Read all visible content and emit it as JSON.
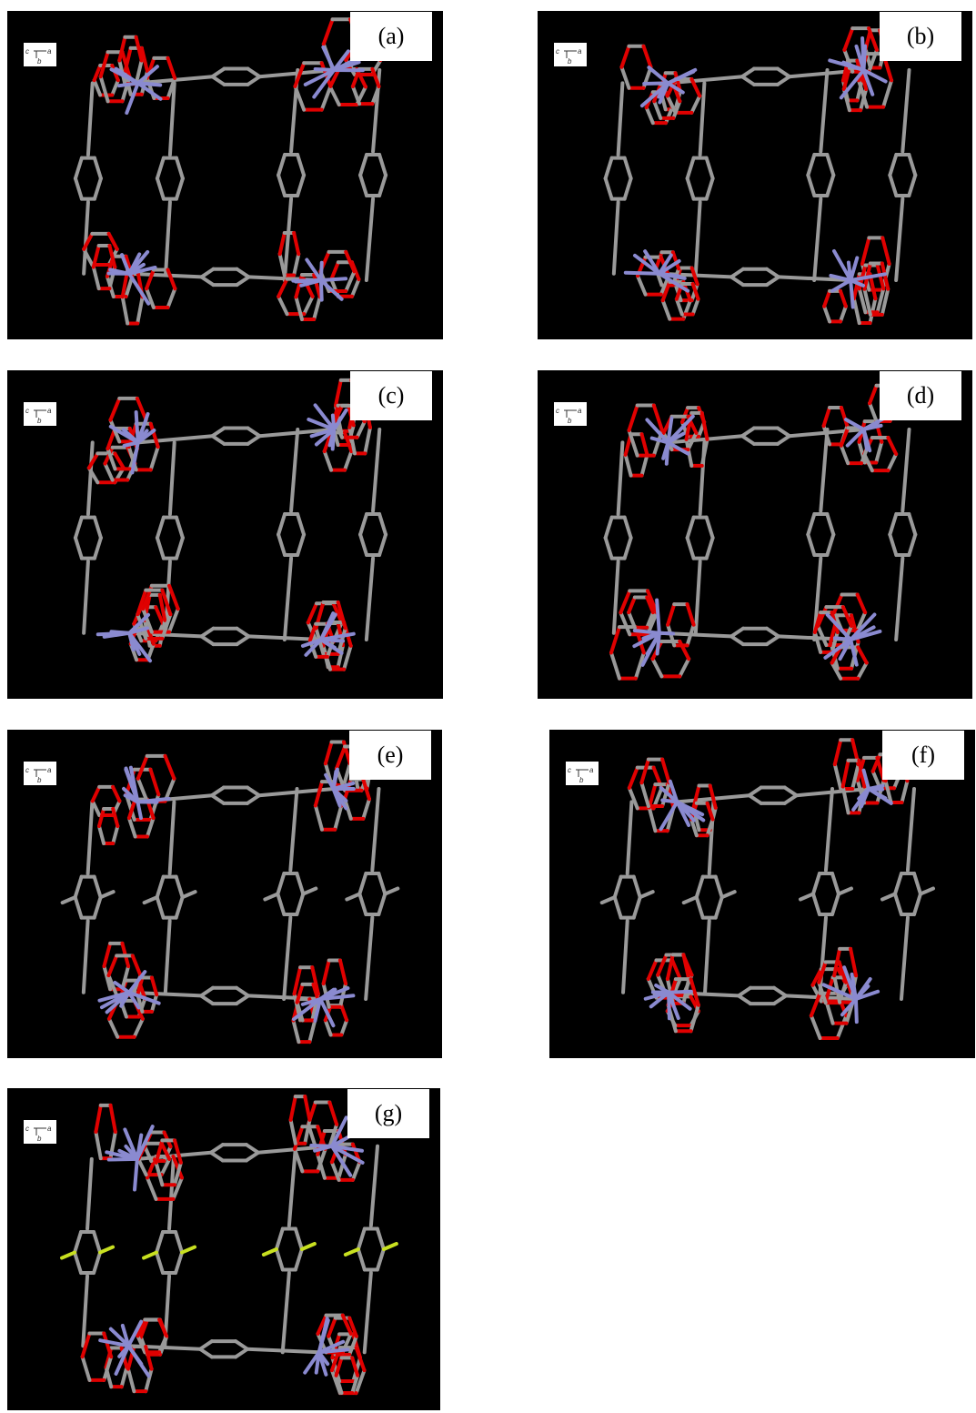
{
  "panels": [
    {
      "label": "(a)",
      "axes": [
        "c",
        "a",
        "b"
      ]
    },
    {
      "label": "(b)",
      "axes": [
        "c",
        "a",
        "b"
      ]
    },
    {
      "label": "(c)",
      "axes": [
        "c",
        "a",
        "b"
      ]
    },
    {
      "label": "(d)",
      "axes": [
        "c",
        "a",
        "b"
      ]
    },
    {
      "label": "(e)",
      "axes": [
        "c",
        "a",
        "b"
      ]
    },
    {
      "label": "(f)",
      "axes": [
        "c",
        "a",
        "b"
      ]
    },
    {
      "label": "(g)",
      "axes": [
        "c",
        "a",
        "b"
      ]
    }
  ]
}
